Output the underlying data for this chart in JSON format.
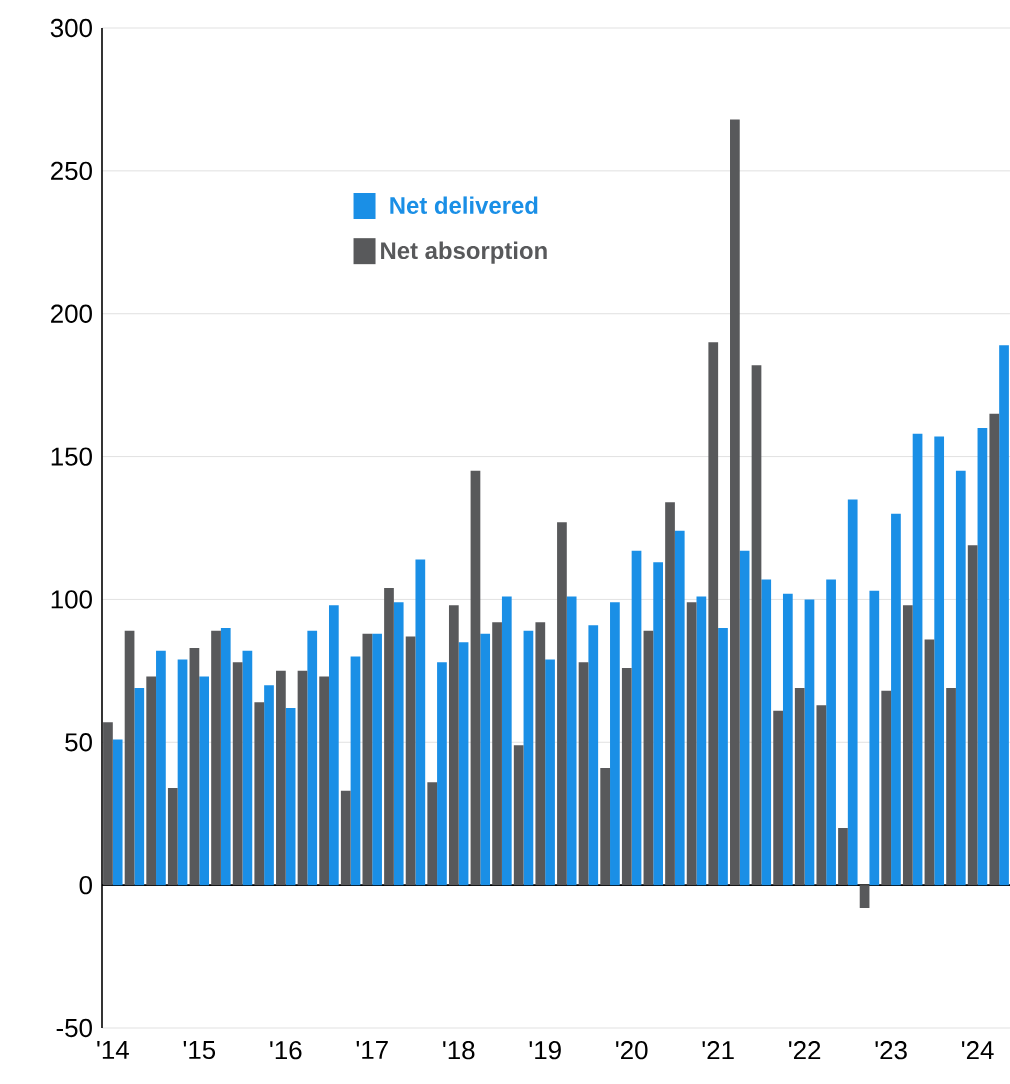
{
  "chart_data": {
    "type": "bar",
    "categories": [
      "'14",
      null,
      null,
      null,
      "'15",
      null,
      null,
      null,
      "'16",
      null,
      null,
      null,
      "'17",
      null,
      null,
      null,
      "'18",
      null,
      null,
      null,
      "'19",
      null,
      null,
      null,
      "'20",
      null,
      null,
      null,
      "'21",
      null,
      null,
      null,
      "'22",
      null,
      null,
      null,
      "'23",
      null,
      null,
      null,
      "'24",
      null
    ],
    "series": [
      {
        "name": "Net delivered",
        "color": "#1a8fe6",
        "values": [
          51,
          69,
          82,
          79,
          73,
          90,
          82,
          70,
          62,
          89,
          98,
          80,
          88,
          99,
          114,
          78,
          85,
          88,
          101,
          89,
          79,
          101,
          91,
          99,
          117,
          113,
          124,
          101,
          90,
          117,
          107,
          102,
          100,
          107,
          135,
          103,
          130,
          158,
          157,
          145,
          160,
          189
        ]
      },
      {
        "name": "Net absorption",
        "color": "#58595b",
        "values": [
          57,
          89,
          73,
          34,
          83,
          89,
          78,
          64,
          75,
          75,
          73,
          33,
          88,
          104,
          87,
          36,
          98,
          145,
          92,
          49,
          92,
          127,
          78,
          41,
          76,
          89,
          134,
          99,
          190,
          268,
          182,
          61,
          69,
          63,
          20,
          -8,
          68,
          98,
          86,
          69,
          119,
          165
        ]
      }
    ],
    "ylim": [
      -50,
      300
    ],
    "yticks": [
      -50,
      0,
      50,
      100,
      150,
      200,
      250,
      300
    ],
    "grid": "y",
    "legend": "top left"
  }
}
